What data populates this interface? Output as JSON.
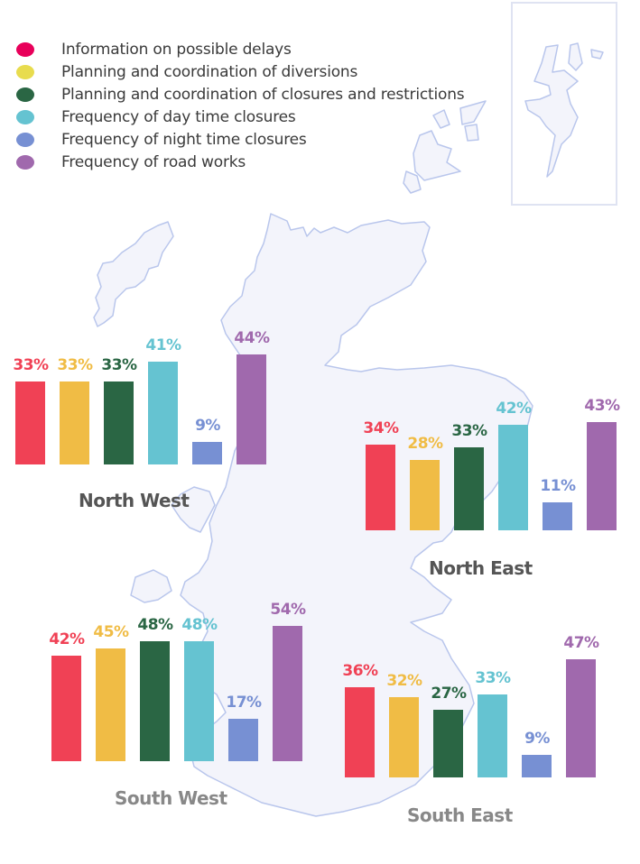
{
  "legend": {
    "items": [
      {
        "label": "Information on possible delays",
        "color": "#e8005a"
      },
      {
        "label": "Planning and coordination of diversions",
        "color": "#e8dc4e"
      },
      {
        "label": "Planning and coordination of closures and restrictions",
        "color": "#2a6644"
      },
      {
        "label": "Frequency of day time closures",
        "color": "#65c3d1"
      },
      {
        "label": "Frequency of night time closures",
        "color": "#7790d3"
      },
      {
        "label": "Frequency of road works",
        "color": "#a069ad"
      }
    ]
  },
  "colors": {
    "bars": [
      "#f04155",
      "#f0bc45",
      "#2a6644",
      "#65c3d1",
      "#7790d3",
      "#a069ad"
    ],
    "labels": [
      "#f04155",
      "#f0bc45",
      "#2a6644",
      "#65c3d1",
      "#7790d3",
      "#a069ad"
    ],
    "map_fill": "#f3f4fb",
    "map_stroke": "#b9c6ec"
  },
  "regions": {
    "north_west": {
      "title": "North West",
      "values": [
        "33%",
        "33%",
        "33%",
        "41%",
        "9%",
        "44%"
      ]
    },
    "north_east": {
      "title": "North East",
      "values": [
        "34%",
        "28%",
        "33%",
        "42%",
        "11%",
        "43%"
      ]
    },
    "south_west": {
      "title": "South West",
      "values": [
        "42%",
        "45%",
        "48%",
        "48%",
        "17%",
        "54%"
      ]
    },
    "south_east": {
      "title": "South East",
      "values": [
        "36%",
        "32%",
        "27%",
        "33%",
        "9%",
        "47%"
      ]
    }
  },
  "chart_data": [
    {
      "type": "bar",
      "title": "North West",
      "categories": [
        "Information on possible delays",
        "Planning and coordination of diversions",
        "Planning and coordination of closures and restrictions",
        "Frequency of day time closures",
        "Frequency of night time closures",
        "Frequency of road works"
      ],
      "values": [
        33,
        33,
        33,
        41,
        9,
        44
      ],
      "ylabel": "%",
      "grid": false,
      "legend_position": "top-left"
    },
    {
      "type": "bar",
      "title": "North East",
      "categories": [
        "Information on possible delays",
        "Planning and coordination of diversions",
        "Planning and coordination of closures and restrictions",
        "Frequency of day time closures",
        "Frequency of night time closures",
        "Frequency of road works"
      ],
      "values": [
        34,
        28,
        33,
        42,
        11,
        43
      ],
      "ylabel": "%",
      "grid": false,
      "legend_position": "top-left"
    },
    {
      "type": "bar",
      "title": "South West",
      "categories": [
        "Information on possible delays",
        "Planning and coordination of diversions",
        "Planning and coordination of closures and restrictions",
        "Frequency of day time closures",
        "Frequency of night time closures",
        "Frequency of road works"
      ],
      "values": [
        42,
        45,
        48,
        48,
        17,
        54
      ],
      "ylabel": "%",
      "grid": false,
      "legend_position": "top-left"
    },
    {
      "type": "bar",
      "title": "South East",
      "categories": [
        "Information on possible delays",
        "Planning and coordination of diversions",
        "Planning and coordination of closures and restrictions",
        "Frequency of day time closures",
        "Frequency of night time closures",
        "Frequency of road works"
      ],
      "values": [
        36,
        32,
        27,
        33,
        9,
        47
      ],
      "ylabel": "%",
      "grid": false,
      "legend_position": "top-left"
    }
  ]
}
